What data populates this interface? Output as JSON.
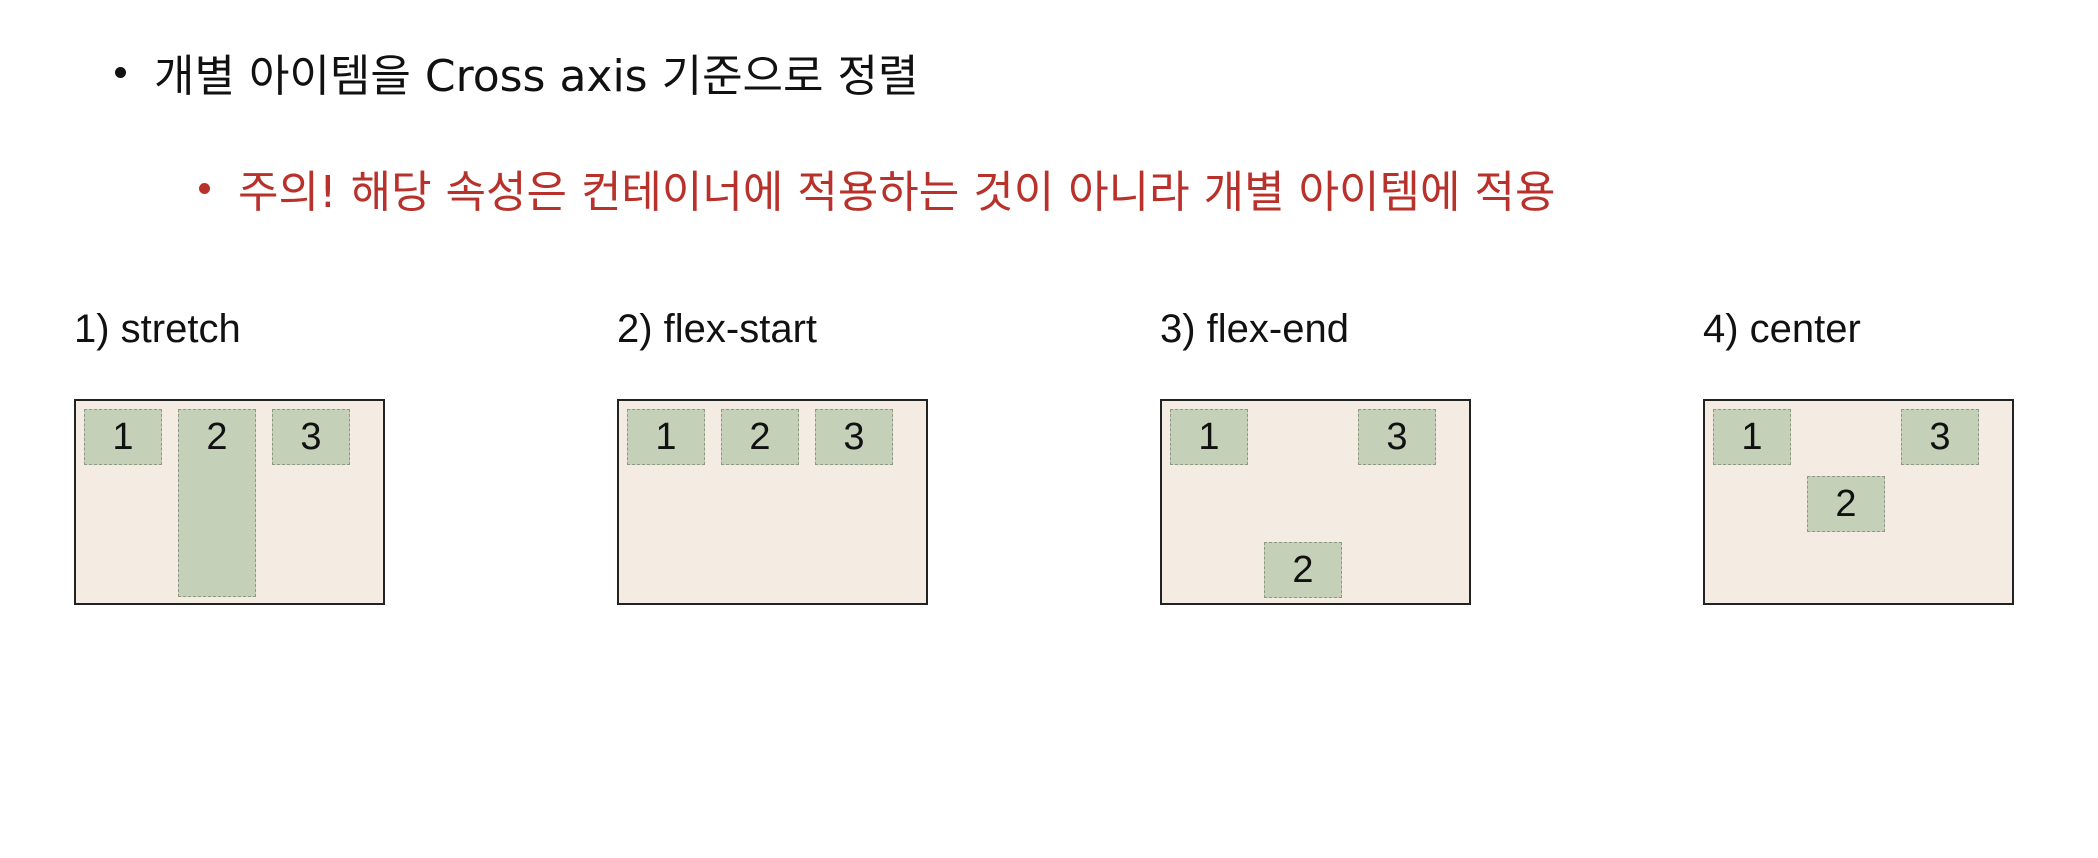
{
  "bullets": {
    "main": "개별 아이템을 Cross axis 기준으로 정렬",
    "note": "주의! 해당 속성은 컨테이너에 적용하는 것이 아니라 개별 아이템에 적용"
  },
  "colors": {
    "note_text": "#b8312a",
    "container_bg": "#f4ece3",
    "item_bg": "#c5d0b9"
  },
  "panels": [
    {
      "title": "1) stretch",
      "items": [
        "1",
        "2",
        "3"
      ]
    },
    {
      "title": "2) flex-start",
      "items": [
        "1",
        "2",
        "3"
      ]
    },
    {
      "title": "3) flex-end",
      "items": [
        "1",
        "3",
        "2"
      ]
    },
    {
      "title": "4) center",
      "items": [
        "1",
        "3",
        "2"
      ]
    }
  ]
}
